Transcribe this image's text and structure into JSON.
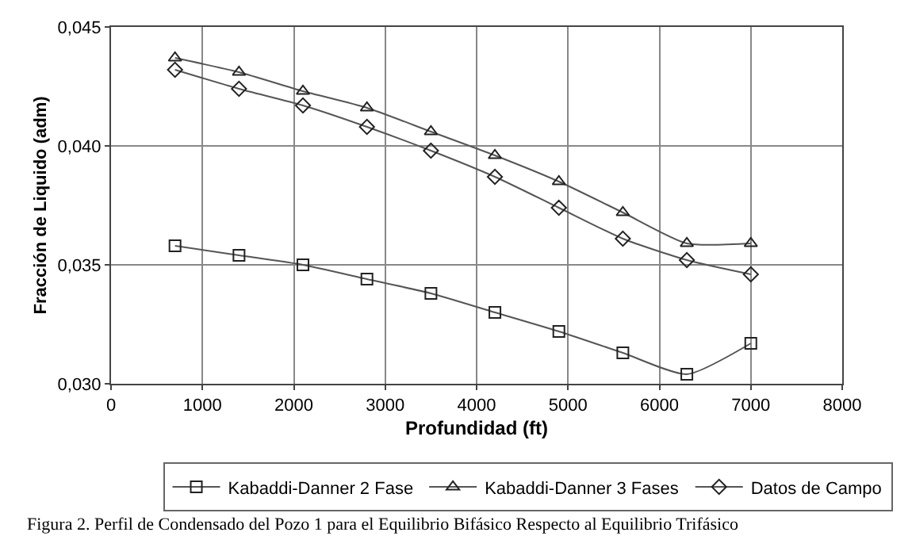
{
  "chart_data": {
    "type": "line",
    "xlabel": "Profundidad (ft)",
    "ylabel": "Fracción de Liquido (adm)",
    "x": [
      700,
      1400,
      2100,
      2800,
      3500,
      4200,
      4900,
      5600,
      6300,
      7000
    ],
    "series": [
      {
        "name": "Kabaddi-Danner 2 Fase",
        "color": "#555555",
        "marker": "square",
        "values": [
          0.0358,
          0.0354,
          0.035,
          0.0344,
          0.0338,
          0.033,
          0.0322,
          0.0313,
          0.0304,
          0.0317
        ]
      },
      {
        "name": "Kabaddi-Danner 3 Fases",
        "color": "#555555",
        "marker": "triangle",
        "values": [
          0.0437,
          0.0431,
          0.0423,
          0.0416,
          0.0406,
          0.0396,
          0.0385,
          0.0372,
          0.0359,
          0.0359
        ]
      },
      {
        "name": "Datos de Campo",
        "color": "#555555",
        "marker": "diamond",
        "values": [
          0.0432,
          0.0424,
          0.0417,
          0.0408,
          0.0398,
          0.0387,
          0.0374,
          0.0361,
          0.0352,
          0.0346
        ]
      }
    ],
    "xlim": [
      0,
      8000
    ],
    "xticks": [
      0,
      1000,
      2000,
      3000,
      4000,
      5000,
      6000,
      7000,
      8000
    ],
    "ylim": [
      0.03,
      0.045
    ],
    "yticks": [
      {
        "value": 0.03,
        "label": "0,030"
      },
      {
        "value": 0.035,
        "label": "0,035"
      },
      {
        "value": 0.04,
        "label": "0,040"
      },
      {
        "value": 0.045,
        "label": "0,045"
      }
    ],
    "grid": true,
    "legend": "bottom",
    "line_style": "solid",
    "annotations": [
      "Figura 2. Perfil de Condensado del Pozo 1 para el Equilibrio Bifásico Respecto al Equilibrio Trifásico"
    ]
  }
}
